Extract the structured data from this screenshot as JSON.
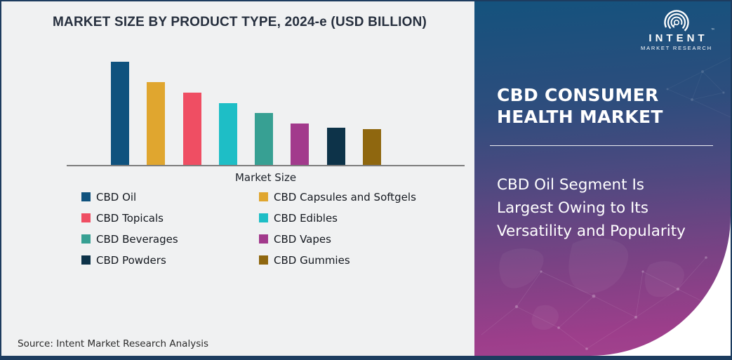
{
  "page": {
    "source_note": "Source: Intent Market Research Analysis"
  },
  "chart_data": {
    "type": "bar",
    "title": "MARKET SIZE BY PRODUCT TYPE, 2024-e (USD BILLION)",
    "xlabel": "Market Size",
    "ylabel": "",
    "categories": [
      "CBD Oil",
      "CBD Capsules and Softgels",
      "CBD Topicals",
      "CBD Edibles",
      "CBD Beverages",
      "CBD Vapes",
      "CBD Powders",
      "CBD Gummies"
    ],
    "values_relative": [
      100,
      80,
      70,
      60,
      50,
      40,
      36,
      35
    ],
    "value_axis_labels_shown": false,
    "data_labels_shown": false,
    "colors": [
      "#0f527e",
      "#e0a62f",
      "#ef4e63",
      "#1ebec6",
      "#37a093",
      "#a23a8c",
      "#0d3349",
      "#8f670f"
    ],
    "ylim": [
      0,
      100
    ],
    "grid": false,
    "legend_position": "bottom-two-columns"
  },
  "panel": {
    "logo": {
      "name": "INTENT",
      "subtitle": "MARKET RESEARCH",
      "trademark": "™",
      "icon": "radar-spiral-magnifier"
    },
    "heading": "CBD CONSUMER HEALTH MARKET",
    "description": "CBD Oil Segment Is Largest Owing to Its Versatility and Popularity",
    "colors": {
      "gradient_top": "#14527d",
      "gradient_bottom": "#9d3e8b"
    }
  },
  "colors": {
    "chart_background": "#f0f1f2",
    "frame_border": "#1d3c5f",
    "title_text": "#262f3e",
    "axis_line": "#7d7d7d"
  }
}
